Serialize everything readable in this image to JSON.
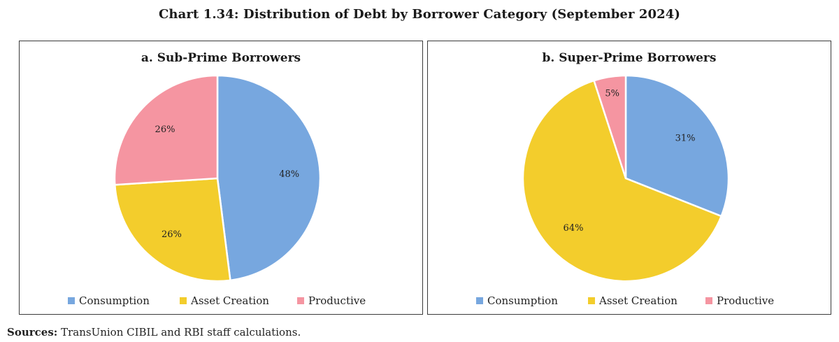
{
  "title": "Chart 1.34: Distribution of Debt by Borrower Category (September 2024)",
  "colors": {
    "consumption": "#77a7df",
    "asset_creation": "#f3cd2c",
    "productive": "#f595a1"
  },
  "chart_data": [
    {
      "type": "pie",
      "title": "a. Sub-Prime Borrowers",
      "categories": [
        "Consumption",
        "Asset Creation",
        "Productive"
      ],
      "values": [
        48,
        26,
        26
      ],
      "labels": [
        "48%",
        "26%",
        "26%"
      ],
      "legend": "bottom"
    },
    {
      "type": "pie",
      "title": "b. Super-Prime Borrowers",
      "categories": [
        "Consumption",
        "Asset Creation",
        "Productive"
      ],
      "values": [
        31,
        64,
        5
      ],
      "labels": [
        "31%",
        "64%",
        "5%"
      ],
      "legend": "bottom"
    }
  ],
  "sources": {
    "label": "Sources:",
    "text": "TransUnion CIBIL and RBI staff calculations."
  }
}
